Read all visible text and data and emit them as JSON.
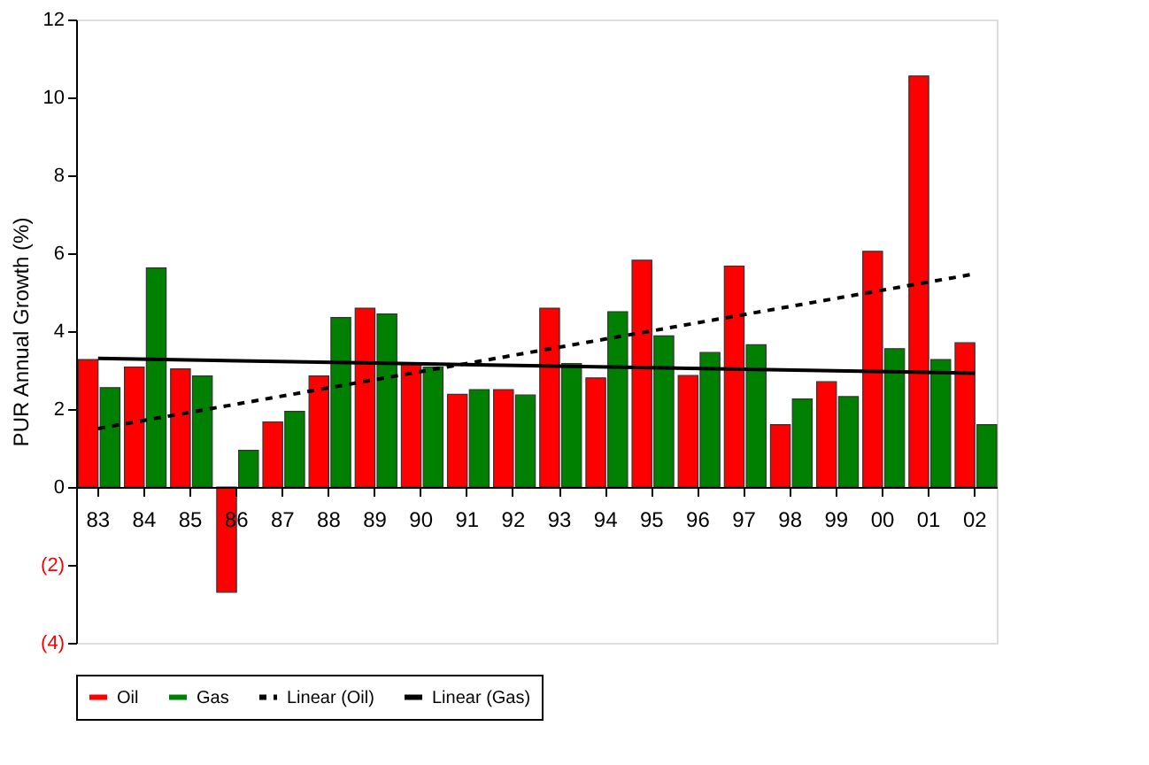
{
  "chart_data": {
    "type": "bar",
    "ylabel": "PUR Annual Growth (%)",
    "categories": [
      "83",
      "84",
      "85",
      "86",
      "87",
      "88",
      "89",
      "90",
      "91",
      "92",
      "93",
      "94",
      "95",
      "96",
      "97",
      "98",
      "99",
      "00",
      "01",
      "02"
    ],
    "series": [
      {
        "name": "Oil",
        "color": "#ff0000",
        "values": [
          3.27,
          3.08,
          3.03,
          -2.7,
          1.67,
          2.85,
          4.59,
          3.15,
          2.38,
          2.5,
          4.59,
          2.8,
          5.82,
          2.86,
          5.67,
          1.6,
          2.7,
          6.05,
          10.55,
          3.7
        ]
      },
      {
        "name": "Gas",
        "color": "#008000",
        "values": [
          2.55,
          5.62,
          2.85,
          0.94,
          1.94,
          4.35,
          4.44,
          3.08,
          2.5,
          2.36,
          3.17,
          4.5,
          3.88,
          3.45,
          3.65,
          2.26,
          2.32,
          3.55,
          3.27,
          1.6
        ]
      },
      {
        "name": "Linear (Oil)",
        "type": "line",
        "color": "#000000",
        "line_style": "dashed",
        "x": [
          "83",
          "02"
        ],
        "values": [
          1.5,
          5.47
        ]
      },
      {
        "name": "Linear (Gas)",
        "type": "line",
        "color": "#000000",
        "line_style": "solid",
        "x": [
          "83",
          "02"
        ],
        "values": [
          3.3,
          2.92
        ]
      }
    ],
    "ylim": [
      -4,
      12
    ],
    "yticks": [
      {
        "value": -4,
        "label": "(4)"
      },
      {
        "value": -2,
        "label": "(2)"
      },
      0,
      2,
      4,
      6,
      8,
      10,
      12
    ],
    "grid": false,
    "legend": "bottom"
  }
}
